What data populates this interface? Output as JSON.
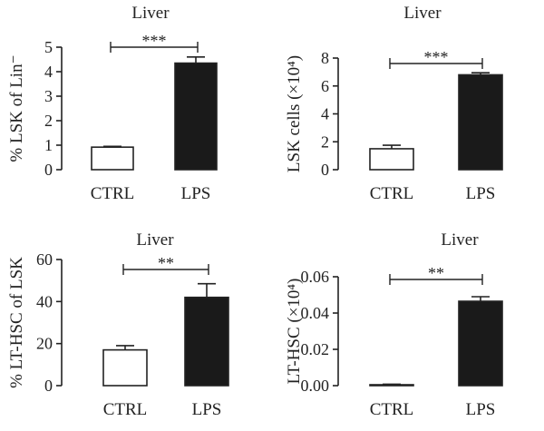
{
  "chart_data": [
    {
      "type": "bar",
      "title": "Liver",
      "ylabel": "% LSK of Lin⁻",
      "categories": [
        "CTRL",
        "LPS"
      ],
      "values": [
        0.92,
        4.35
      ],
      "errors": [
        0.03,
        0.25
      ],
      "bar_fills": [
        "#ffffff",
        "#1a1a1a"
      ],
      "yticks": [
        "0",
        "1",
        "2",
        "3",
        "4",
        "5"
      ],
      "ylim": [
        0,
        5
      ],
      "significance": "***"
    },
    {
      "type": "bar",
      "title": "Liver",
      "ylabel": "LSK cells (×10⁴)",
      "categories": [
        "CTRL",
        "LPS"
      ],
      "values": [
        1.5,
        6.8
      ],
      "errors": [
        0.25,
        0.15
      ],
      "bar_fills": [
        "#ffffff",
        "#1a1a1a"
      ],
      "yticks": [
        "0",
        "2",
        "4",
        "6",
        "8"
      ],
      "ylim": [
        0,
        8
      ],
      "significance": "***"
    },
    {
      "type": "bar",
      "title": "Liver",
      "ylabel": "% LT-HSC of LSK",
      "categories": [
        "CTRL",
        "LPS"
      ],
      "values": [
        17,
        42
      ],
      "errors": [
        2,
        6.5
      ],
      "bar_fills": [
        "#ffffff",
        "#1a1a1a"
      ],
      "yticks": [
        "0",
        "20",
        "40",
        "60"
      ],
      "ylim": [
        0,
        60
      ],
      "significance": "**"
    },
    {
      "type": "bar",
      "title": "Liver",
      "ylabel": "LT-HSC (×10⁴)",
      "categories": [
        "CTRL",
        "LPS"
      ],
      "values": [
        0.0005,
        0.0465
      ],
      "errors": [
        0.0003,
        0.0025
      ],
      "bar_fills": [
        "#ffffff",
        "#1a1a1a"
      ],
      "yticks": [
        "0.00",
        "0.02",
        "0.04",
        "0.06"
      ],
      "ylim": [
        0,
        0.06
      ],
      "significance": "**"
    }
  ]
}
